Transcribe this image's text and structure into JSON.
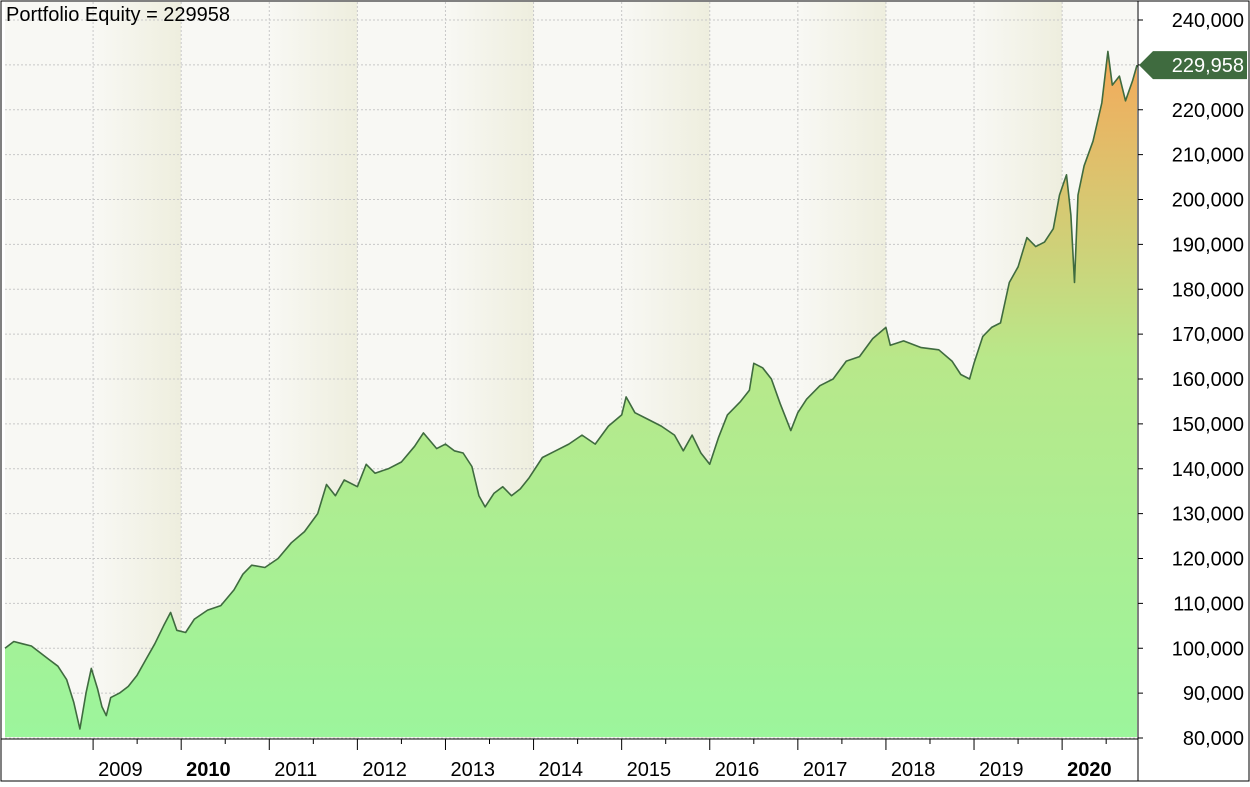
{
  "chart_data": {
    "type": "area",
    "title": "Portfolio Equity = 229958",
    "last_value_label": "229,958",
    "colors": {
      "line": "#3f6b3f",
      "fill_top": "#f5a95a",
      "fill_mid": "#b8e88a",
      "fill_bottom": "#9cf59c",
      "band_light": "#f8f8f4",
      "band_dark": "#eeeede",
      "grid": "#c8c8c8",
      "marker": "#3f6b3f"
    },
    "ylim": [
      80000,
      240000
    ],
    "y_ticks": [
      80000,
      90000,
      100000,
      110000,
      120000,
      130000,
      140000,
      150000,
      160000,
      170000,
      180000,
      190000,
      200000,
      210000,
      220000,
      230000,
      240000
    ],
    "y_tick_labels": [
      "80,000",
      "90,000",
      "100,000",
      "110,000",
      "120,000",
      "130,000",
      "140,000",
      "150,000",
      "160,000",
      "170,000",
      "180,000",
      "190,000",
      "200,000",
      "210,000",
      "220,000",
      "230,000",
      "240,000"
    ],
    "xlim": [
      2008.0,
      2020.85
    ],
    "x_ticks": [
      2009,
      2010,
      2011,
      2012,
      2013,
      2014,
      2015,
      2016,
      2017,
      2018,
      2019,
      2020
    ],
    "x_tick_labels": [
      "2009",
      "2010",
      "2011",
      "2012",
      "2013",
      "2014",
      "2015",
      "2016",
      "2017",
      "2018",
      "2019",
      "2020"
    ],
    "bold_years": [
      "2010",
      "2020"
    ],
    "x_minor_ticks": [
      2009.5,
      2010.5,
      2011.5,
      2012.5,
      2013.5,
      2014.5,
      2015.5,
      2016.5,
      2017.5,
      2018.5,
      2019.5,
      2020.5
    ],
    "series": [
      {
        "points": [
          [
            2008.0,
            100000
          ],
          [
            2008.1,
            101500
          ],
          [
            2008.2,
            101000
          ],
          [
            2008.3,
            100500
          ],
          [
            2008.4,
            99000
          ],
          [
            2008.5,
            97500
          ],
          [
            2008.6,
            96000
          ],
          [
            2008.7,
            93000
          ],
          [
            2008.78,
            88000
          ],
          [
            2008.85,
            82000
          ],
          [
            2008.92,
            90000
          ],
          [
            2008.98,
            95500
          ],
          [
            2009.05,
            91000
          ],
          [
            2009.1,
            87000
          ],
          [
            2009.15,
            85000
          ],
          [
            2009.2,
            89000
          ],
          [
            2009.3,
            90000
          ],
          [
            2009.4,
            91500
          ],
          [
            2009.5,
            94000
          ],
          [
            2009.6,
            97500
          ],
          [
            2009.7,
            101000
          ],
          [
            2009.8,
            105000
          ],
          [
            2009.88,
            108000
          ],
          [
            2009.95,
            104000
          ],
          [
            2010.05,
            103500
          ],
          [
            2010.15,
            106500
          ],
          [
            2010.3,
            108500
          ],
          [
            2010.45,
            109500
          ],
          [
            2010.6,
            113000
          ],
          [
            2010.7,
            116500
          ],
          [
            2010.8,
            118500
          ],
          [
            2010.95,
            118000
          ],
          [
            2011.1,
            120000
          ],
          [
            2011.25,
            123500
          ],
          [
            2011.4,
            126000
          ],
          [
            2011.55,
            130000
          ],
          [
            2011.65,
            136500
          ],
          [
            2011.75,
            134000
          ],
          [
            2011.85,
            137500
          ],
          [
            2012.0,
            136000
          ],
          [
            2012.1,
            141000
          ],
          [
            2012.2,
            139000
          ],
          [
            2012.35,
            140000
          ],
          [
            2012.5,
            141500
          ],
          [
            2012.65,
            145000
          ],
          [
            2012.75,
            148000
          ],
          [
            2012.9,
            144500
          ],
          [
            2013.0,
            145500
          ],
          [
            2013.1,
            144000
          ],
          [
            2013.2,
            143500
          ],
          [
            2013.3,
            140500
          ],
          [
            2013.38,
            134000
          ],
          [
            2013.45,
            131500
          ],
          [
            2013.55,
            134500
          ],
          [
            2013.65,
            136000
          ],
          [
            2013.75,
            134000
          ],
          [
            2013.85,
            135500
          ],
          [
            2013.95,
            138000
          ],
          [
            2014.1,
            142500
          ],
          [
            2014.25,
            144000
          ],
          [
            2014.4,
            145500
          ],
          [
            2014.55,
            147500
          ],
          [
            2014.7,
            145500
          ],
          [
            2014.85,
            149500
          ],
          [
            2015.0,
            152000
          ],
          [
            2015.05,
            156000
          ],
          [
            2015.15,
            152500
          ],
          [
            2015.3,
            151000
          ],
          [
            2015.45,
            149500
          ],
          [
            2015.6,
            147500
          ],
          [
            2015.7,
            144000
          ],
          [
            2015.8,
            147500
          ],
          [
            2015.9,
            143500
          ],
          [
            2016.0,
            141000
          ],
          [
            2016.1,
            147000
          ],
          [
            2016.2,
            152000
          ],
          [
            2016.35,
            155000
          ],
          [
            2016.45,
            157500
          ],
          [
            2016.5,
            163500
          ],
          [
            2016.6,
            162500
          ],
          [
            2016.7,
            160000
          ],
          [
            2016.8,
            154500
          ],
          [
            2016.92,
            148500
          ],
          [
            2017.0,
            152500
          ],
          [
            2017.1,
            155500
          ],
          [
            2017.25,
            158500
          ],
          [
            2017.4,
            160000
          ],
          [
            2017.55,
            164000
          ],
          [
            2017.7,
            165000
          ],
          [
            2017.85,
            169000
          ],
          [
            2018.0,
            171500
          ],
          [
            2018.05,
            167500
          ],
          [
            2018.2,
            168500
          ],
          [
            2018.4,
            167000
          ],
          [
            2018.6,
            166500
          ],
          [
            2018.75,
            164000
          ],
          [
            2018.85,
            161000
          ],
          [
            2018.95,
            160000
          ],
          [
            2019.0,
            163500
          ],
          [
            2019.1,
            169500
          ],
          [
            2019.2,
            171500
          ],
          [
            2019.3,
            172500
          ],
          [
            2019.4,
            181500
          ],
          [
            2019.5,
            185000
          ],
          [
            2019.6,
            191500
          ],
          [
            2019.7,
            189500
          ],
          [
            2019.8,
            190500
          ],
          [
            2019.9,
            193500
          ],
          [
            2019.97,
            201000
          ],
          [
            2020.05,
            205500
          ],
          [
            2020.1,
            196500
          ],
          [
            2020.14,
            181500
          ],
          [
            2020.18,
            201000
          ],
          [
            2020.25,
            207500
          ],
          [
            2020.35,
            213000
          ],
          [
            2020.45,
            221500
          ],
          [
            2020.52,
            233000
          ],
          [
            2020.57,
            225500
          ],
          [
            2020.65,
            227500
          ],
          [
            2020.72,
            222000
          ],
          [
            2020.8,
            226500
          ],
          [
            2020.85,
            229958
          ]
        ]
      }
    ]
  }
}
